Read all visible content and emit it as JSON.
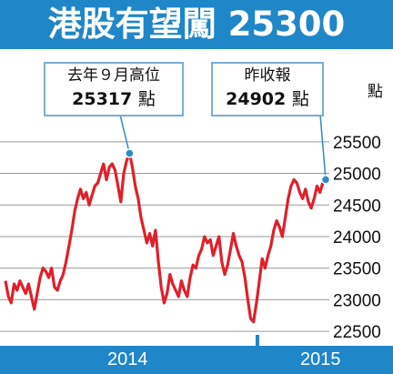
{
  "title": "港股有望闖 25300",
  "callouts": {
    "high": {
      "line1": "去年９月高位",
      "value": "25317",
      "unit": "點"
    },
    "latest": {
      "line1": "昨收報",
      "value": "24902",
      "unit": "點"
    }
  },
  "colors": {
    "accent": "#1f86c8",
    "line": "#e0202a",
    "grid": "#9a9a9a",
    "leader": "#2d8bc4"
  },
  "chart_data": {
    "type": "line",
    "title": "港股有望闖 25300",
    "ylabel": "點",
    "ylim": [
      22300,
      25800
    ],
    "yticks": [
      22500,
      23000,
      23500,
      24000,
      24500,
      25000,
      25500
    ],
    "grid": true,
    "xticks": [
      "2014",
      "2015"
    ],
    "series": [
      {
        "values": [
          23300,
          23050,
          22950,
          23250,
          23150,
          23300,
          23200,
          23100,
          23250,
          23050,
          22850,
          23100,
          23350,
          23500,
          23450,
          23350,
          23500,
          23200,
          23150,
          23300,
          23400,
          23600,
          23850,
          24100,
          24400,
          24600,
          24750,
          24600,
          24700,
          24500,
          24650,
          24800,
          24850,
          25000,
          25150,
          24900,
          25100,
          25150,
          25050,
          24800,
          24550,
          25000,
          25200,
          25317,
          25100,
          24800,
          24600,
          24300,
          24100,
          23900,
          24050,
          23850,
          24100,
          23600,
          23200,
          22950,
          23100,
          23400,
          23250,
          23150,
          23050,
          23300,
          23150,
          23050,
          23350,
          23550,
          23500,
          23700,
          23800,
          24000,
          23900,
          23950,
          23700,
          23850,
          24000,
          23600,
          23400,
          23550,
          23800,
          24050,
          23850,
          23700,
          23600,
          23350,
          23000,
          22700,
          22650,
          22950,
          23300,
          23650,
          23500,
          23700,
          23850,
          24100,
          24250,
          24150,
          24000,
          24300,
          24600,
          24800,
          24900,
          24850,
          24700,
          24600,
          24750,
          24550,
          24450,
          24600,
          24800,
          24700,
          24850,
          24902
        ]
      }
    ]
  }
}
